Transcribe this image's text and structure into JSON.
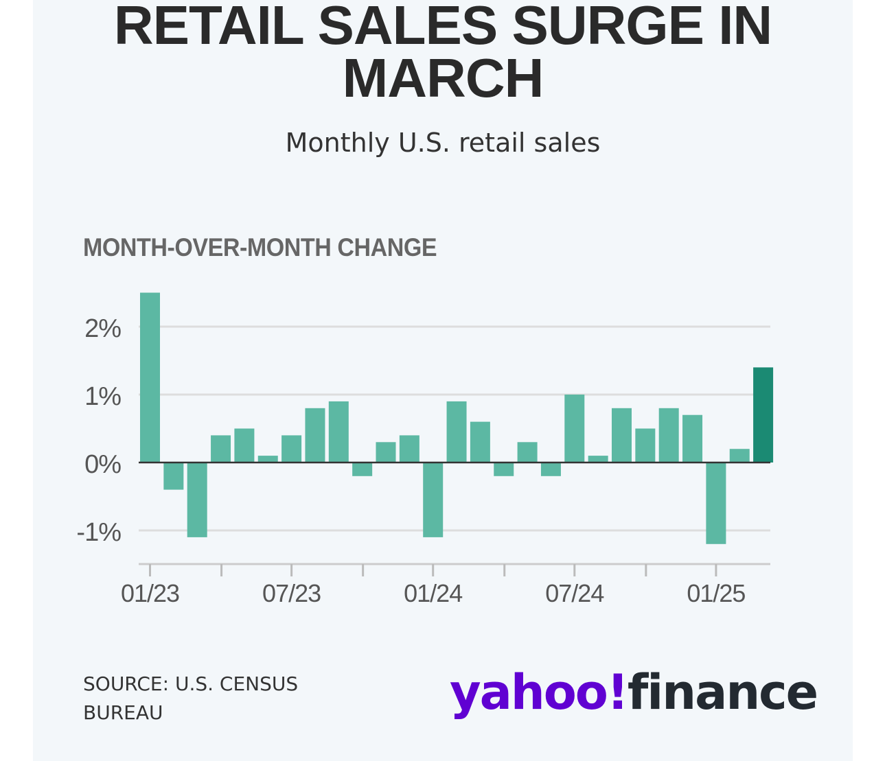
{
  "header": {
    "title": "RETAIL SALES SURGE IN MARCH",
    "subtitle": "Monthly U.S. retail sales"
  },
  "chart_label": "MONTH-OVER-MONTH CHANGE",
  "footer": {
    "source": "SOURCE: U.S. CENSUS BUREAU",
    "logo_primary": "yahoo!",
    "logo_secondary": "finance"
  },
  "colors": {
    "bar": "#5cb8a3",
    "bar_highlight": "#1b8a73",
    "grid": "#dddddd",
    "zero_line": "#333333",
    "logo_purple": "#6001d2",
    "logo_dark": "#232a31"
  },
  "chart_data": {
    "type": "bar",
    "title": "",
    "xlabel": "",
    "ylabel": "",
    "unit": "%",
    "categories": [
      "01/23",
      "02/23",
      "03/23",
      "04/23",
      "05/23",
      "06/23",
      "07/23",
      "08/23",
      "09/23",
      "10/23",
      "11/23",
      "12/23",
      "01/24",
      "02/24",
      "03/24",
      "04/24",
      "05/24",
      "06/24",
      "07/24",
      "08/24",
      "09/24",
      "10/24",
      "11/24",
      "12/24",
      "01/25",
      "02/25",
      "03/25"
    ],
    "values": [
      2.5,
      -0.4,
      -1.1,
      0.4,
      0.5,
      0.1,
      0.4,
      0.8,
      0.9,
      -0.2,
      0.3,
      0.4,
      -1.1,
      0.9,
      0.6,
      -0.2,
      0.3,
      -0.2,
      1.0,
      0.1,
      0.8,
      0.5,
      0.8,
      0.7,
      -1.2,
      0.2,
      1.4
    ],
    "highlight_index": 26,
    "ylim": [
      -1.5,
      2.5
    ],
    "yticks": [
      {
        "value": 2,
        "label": "2%"
      },
      {
        "value": 1,
        "label": "1%"
      },
      {
        "value": 0,
        "label": "0%"
      },
      {
        "value": -1,
        "label": "-1%"
      }
    ],
    "xtick_labels": [
      {
        "index": 0,
        "label": "01/23"
      },
      {
        "index": 6,
        "label": "07/23"
      },
      {
        "index": 12,
        "label": "01/24"
      },
      {
        "index": 18,
        "label": "07/24"
      },
      {
        "index": 24,
        "label": "01/25"
      }
    ],
    "minor_tick_indices": [
      3,
      9,
      15,
      21
    ],
    "grid": true,
    "legend": "none"
  }
}
